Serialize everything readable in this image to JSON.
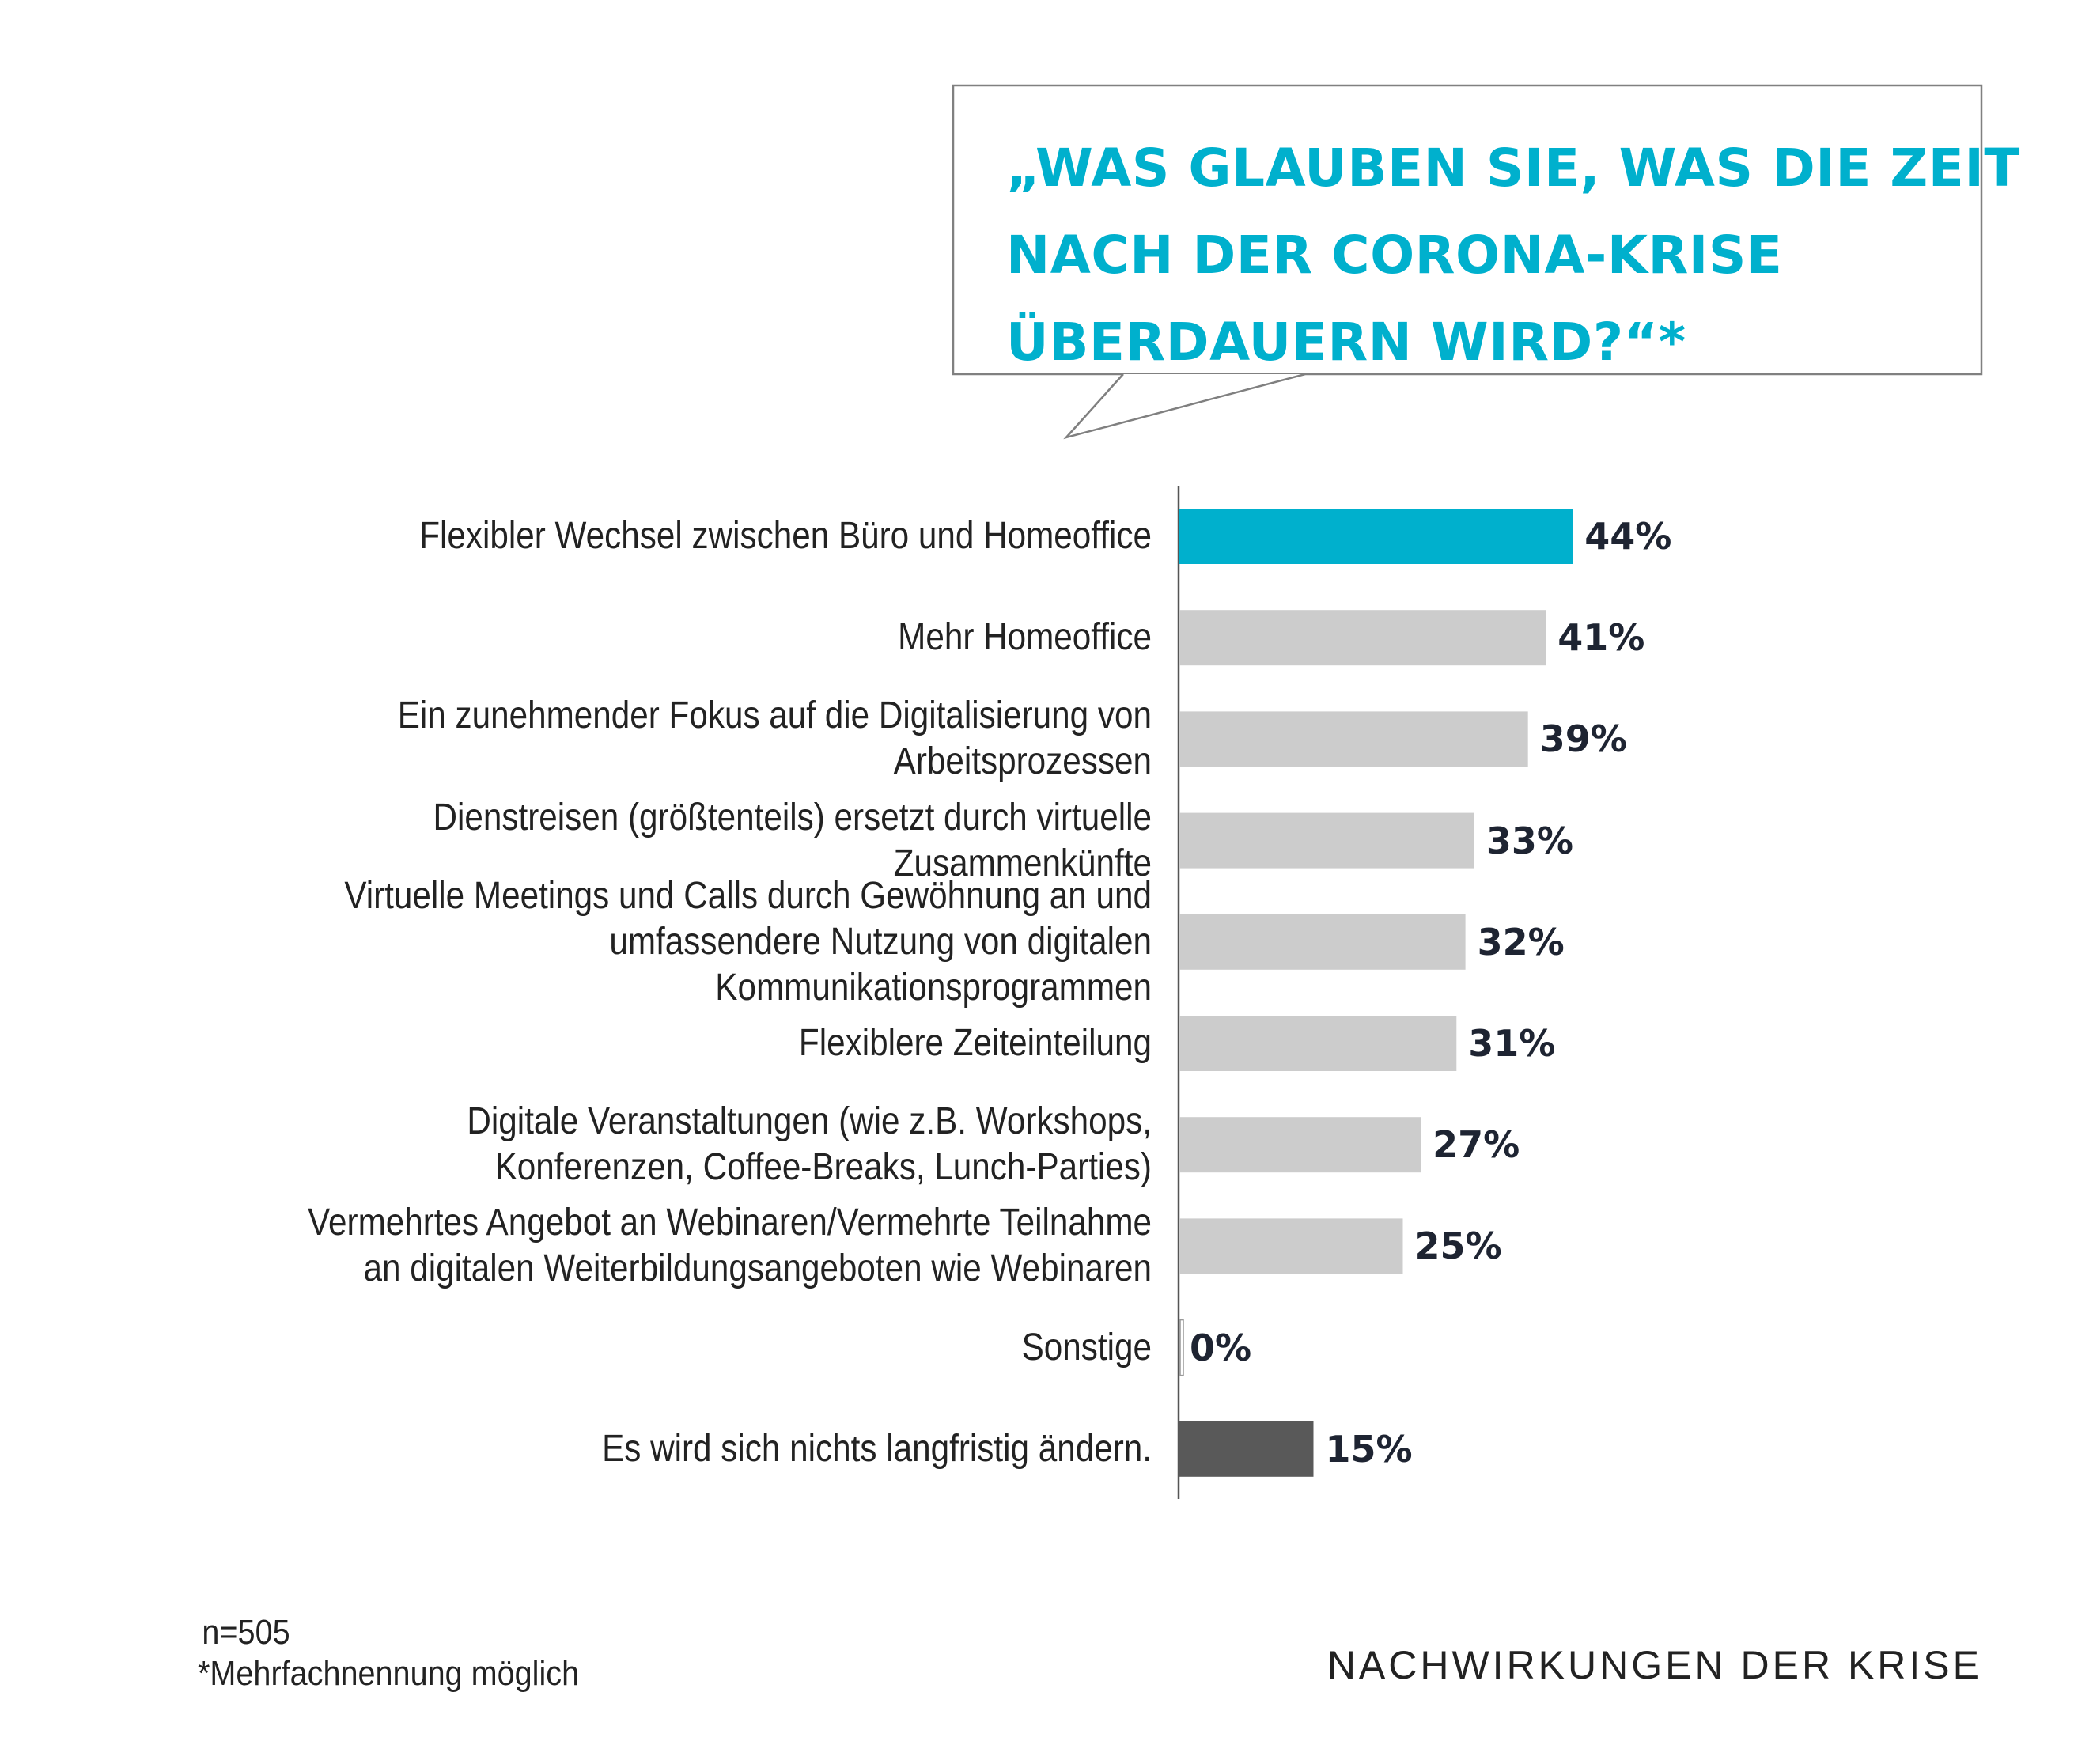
{
  "question": {
    "lines": [
      "„WAS GLAUBEN SIE, WAS DIE ZEIT",
      "NACH DER CORONA-KRISE",
      "ÜBERDAUERN WIRD?“*"
    ]
  },
  "colors": {
    "accent": "#00b0cd",
    "bar_default": "#cccccc",
    "bar_dark": "#595959",
    "axis": "#555555"
  },
  "chart_data": {
    "type": "bar",
    "orientation": "horizontal",
    "title": "„WAS GLAUBEN SIE, WAS DIE ZEIT NACH DER CORONA-KRISE ÜBERDAUERN WIRD?“*",
    "unit": "%",
    "xlim": [
      0,
      100
    ],
    "grid": false,
    "legend": "none",
    "categories": [
      [
        "Flexibler Wechsel zwischen Büro und Homeoffice"
      ],
      [
        "Mehr Homeoffice"
      ],
      [
        "Ein zunehmender Fokus auf die Digitalisierung von",
        "Arbeitsprozessen"
      ],
      [
        "Dienstreisen (größtenteils) ersetzt durch virtuelle",
        "Zusammenkünfte"
      ],
      [
        "Virtuelle Meetings und Calls durch Gewöhnung an und",
        "umfassendere Nutzung von digitalen",
        "Kommunikationsprogrammen"
      ],
      [
        "Flexiblere Zeiteinteilung"
      ],
      [
        "Digitale Veranstaltungen (wie z.B. Workshops,",
        "Konferenzen, Coffee-Breaks, Lunch-Parties)"
      ],
      [
        "Vermehrtes Angebot an Webinaren/Vermehrte Teilnahme",
        "an digitalen Weiterbildungsangeboten wie Webinaren"
      ],
      [
        "Sonstige"
      ],
      [
        "Es wird sich nichts langfristig ändern."
      ]
    ],
    "values": [
      44,
      41,
      39,
      33,
      32,
      31,
      27,
      25,
      0,
      15
    ],
    "value_labels": [
      "44%",
      "41%",
      "39%",
      "33%",
      "32%",
      "31%",
      "27%",
      "25%",
      "0%",
      "15%"
    ],
    "bar_styles": [
      "accent",
      "default",
      "default",
      "default",
      "default",
      "default",
      "default",
      "default",
      "outline",
      "dark"
    ]
  },
  "footnote": {
    "n": "n=505",
    "note": "*Mehrfachnennung möglich"
  },
  "footer_title": "NACHWIRKUNGEN DER KRISE"
}
